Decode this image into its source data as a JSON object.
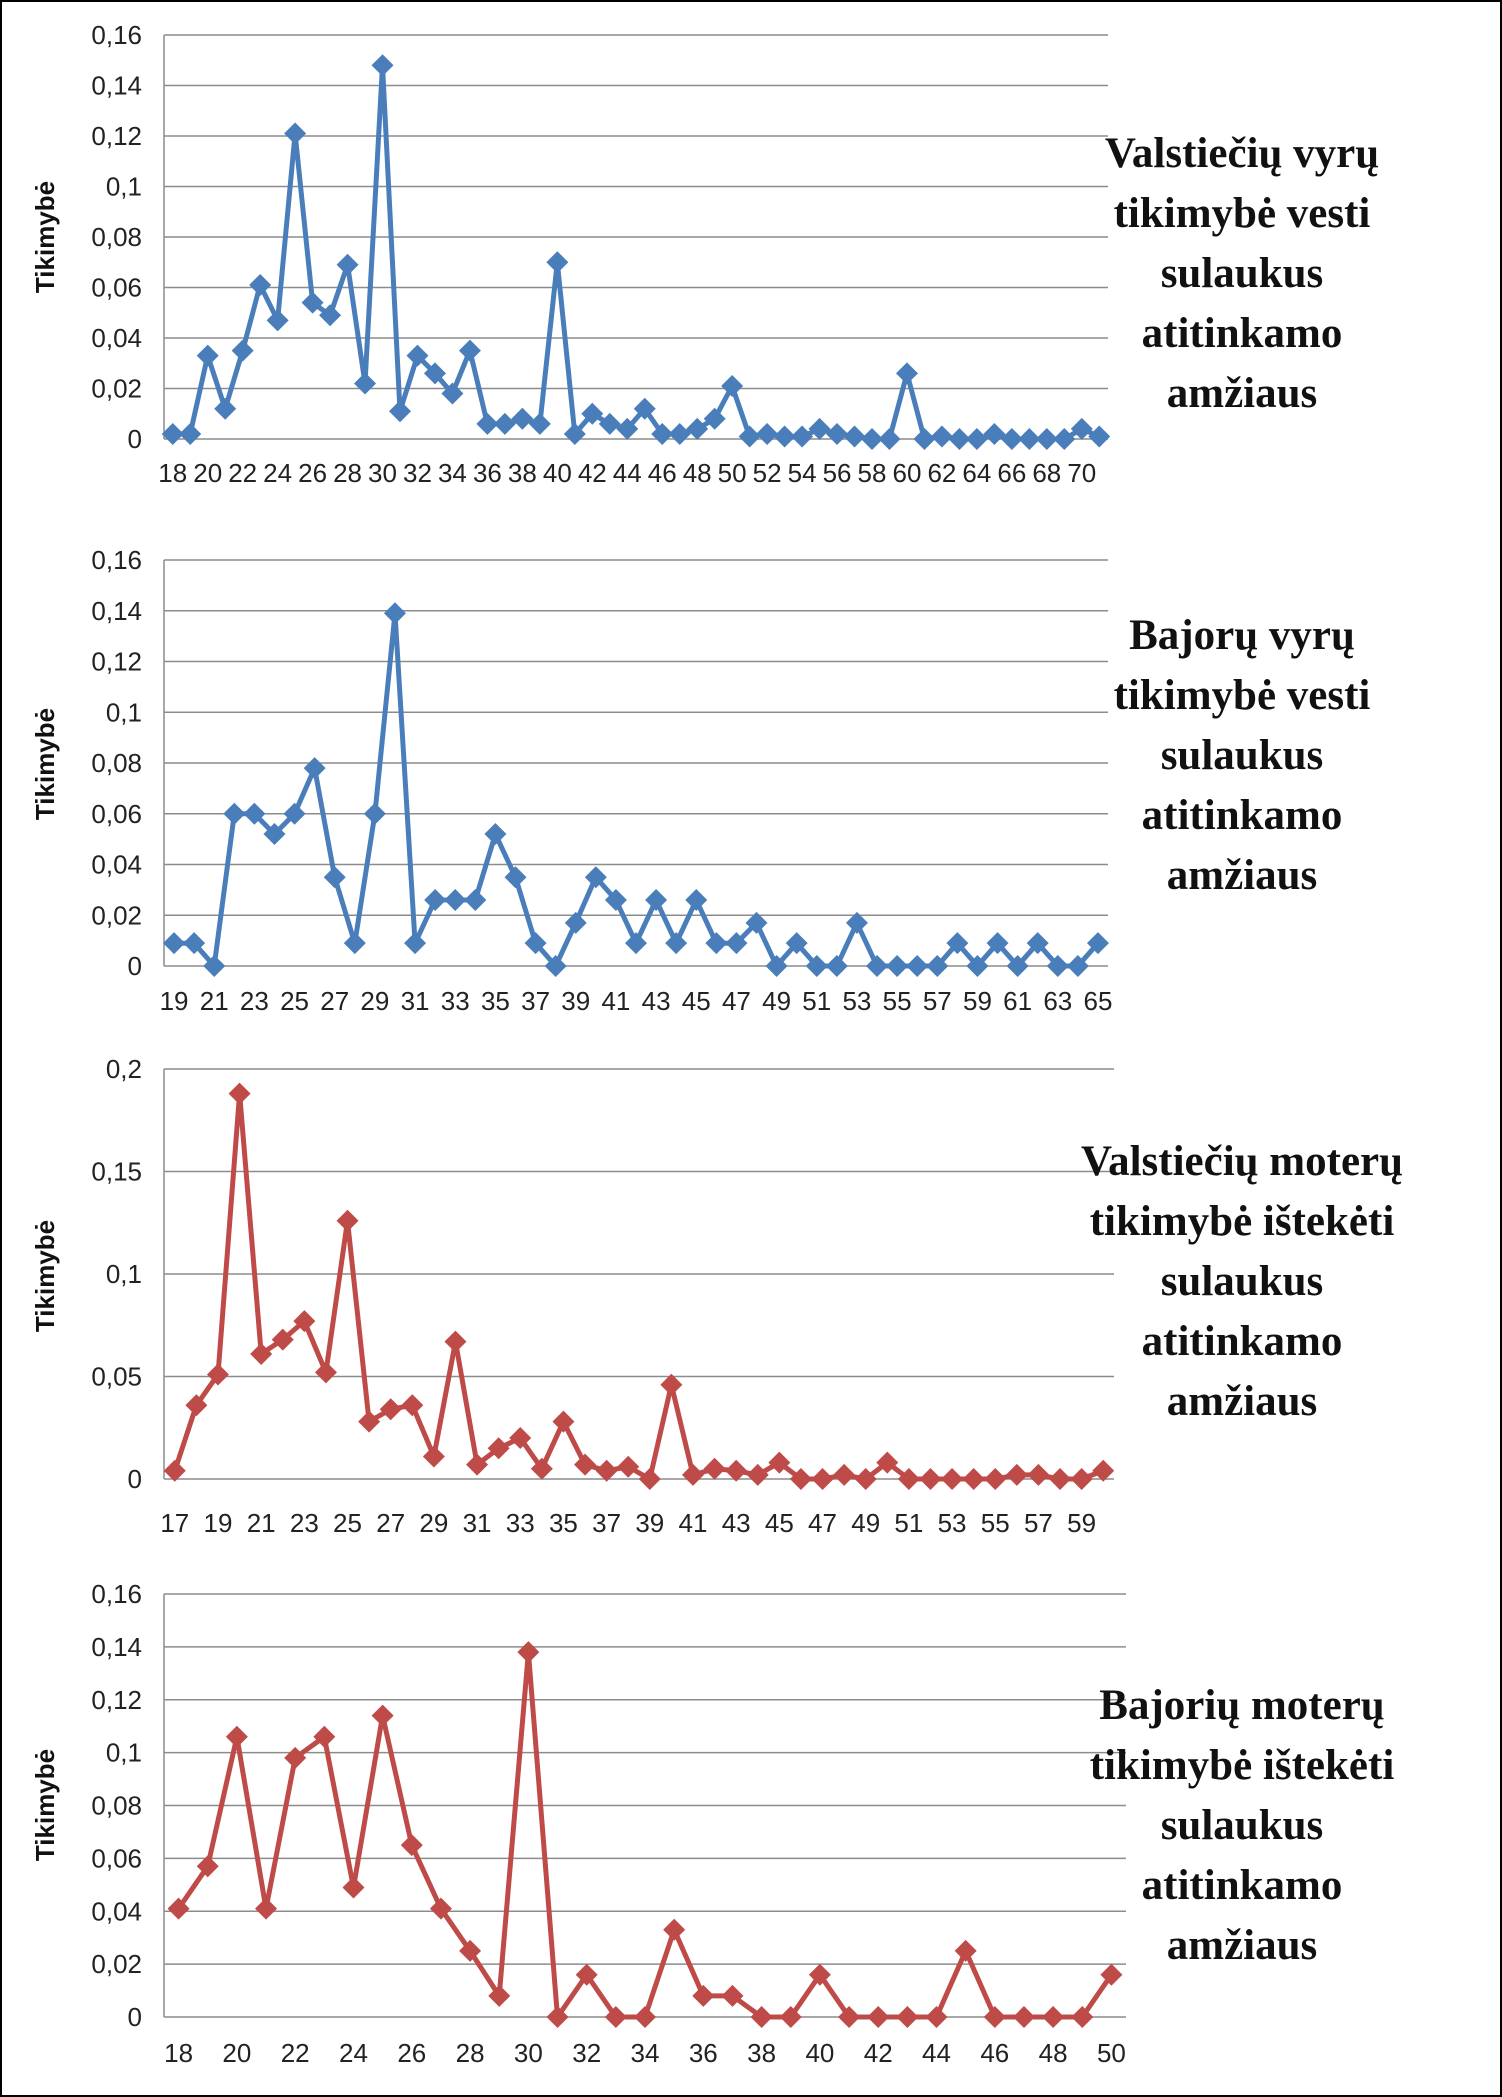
{
  "chart_data": [
    {
      "type": "line",
      "caption": [
        "Valstiečių vyrų",
        "tikimybė vesti",
        "sulaukus",
        "atitinkamo",
        "amžiaus"
      ],
      "ylabel": "Tikimybė",
      "ylim": [
        0,
        0.16
      ],
      "yticks": [
        "0",
        "0,02",
        "0,04",
        "0,06",
        "0,08",
        "0,1",
        "0,12",
        "0,14",
        "0,16"
      ],
      "x": [
        18,
        19,
        20,
        21,
        22,
        23,
        24,
        25,
        26,
        27,
        28,
        29,
        30,
        31,
        32,
        33,
        34,
        35,
        36,
        37,
        38,
        39,
        40,
        41,
        42,
        43,
        44,
        45,
        46,
        47,
        48,
        49,
        50,
        51,
        52,
        53,
        54,
        55,
        56,
        57,
        58,
        59,
        60,
        61,
        62,
        63,
        64,
        65,
        66,
        67,
        68,
        69,
        70,
        71
      ],
      "xtick_labels": [
        "18",
        "20",
        "22",
        "24",
        "26",
        "28",
        "30",
        "32",
        "34",
        "36",
        "38",
        "40",
        "42",
        "44",
        "46",
        "48",
        "50",
        "52",
        "54",
        "56",
        "58",
        "60",
        "62",
        "64",
        "66",
        "68",
        "70"
      ],
      "values": [
        0.002,
        0.002,
        0.033,
        0.012,
        0.035,
        0.061,
        0.047,
        0.121,
        0.054,
        0.049,
        0.069,
        0.022,
        0.148,
        0.011,
        0.033,
        0.026,
        0.018,
        0.035,
        0.006,
        0.006,
        0.008,
        0.006,
        0.07,
        0.002,
        0.01,
        0.006,
        0.004,
        0.012,
        0.002,
        0.002,
        0.004,
        0.008,
        0.021,
        0.001,
        0.002,
        0.001,
        0.001,
        0.004,
        0.002,
        0.001,
        0,
        0,
        0.026,
        0,
        0.001,
        0,
        0,
        0.002,
        0,
        0,
        0,
        0,
        0.004,
        0.001
      ],
      "color": "#4a7ebb",
      "grid": true
    },
    {
      "type": "line",
      "caption": [
        "Bajorų vyrų",
        "tikimybė vesti",
        "sulaukus",
        "atitinkamo",
        "amžiaus"
      ],
      "ylabel": "Tikimybė",
      "ylim": [
        0,
        0.16
      ],
      "yticks": [
        "0",
        "0,02",
        "0,04",
        "0,06",
        "0,08",
        "0,1",
        "0,12",
        "0,14",
        "0,16"
      ],
      "x": [
        19,
        20,
        21,
        22,
        23,
        24,
        25,
        26,
        27,
        28,
        29,
        30,
        31,
        32,
        33,
        34,
        35,
        36,
        37,
        38,
        39,
        40,
        41,
        42,
        43,
        44,
        45,
        46,
        47,
        48,
        49,
        50,
        51,
        52,
        53,
        54,
        55,
        56,
        57,
        58,
        59,
        60,
        61,
        62,
        63,
        64,
        65
      ],
      "xtick_labels": [
        "19",
        "21",
        "23",
        "25",
        "27",
        "29",
        "31",
        "33",
        "35",
        "37",
        "39",
        "41",
        "43",
        "45",
        "47",
        "49",
        "51",
        "53",
        "55",
        "57",
        "59",
        "61",
        "63",
        "65"
      ],
      "values": [
        0.009,
        0.009,
        0,
        0.06,
        0.06,
        0.052,
        0.06,
        0.078,
        0.035,
        0.009,
        0.06,
        0.139,
        0.009,
        0.026,
        0.026,
        0.026,
        0.052,
        0.035,
        0.009,
        0,
        0.017,
        0.035,
        0.026,
        0.009,
        0.026,
        0.009,
        0.026,
        0.009,
        0.009,
        0.017,
        0,
        0.009,
        0,
        0,
        0.017,
        0,
        0,
        0,
        0,
        0.009,
        0,
        0.009,
        0,
        0.009,
        0,
        0,
        0.009
      ],
      "color": "#4a7ebb",
      "grid": true
    },
    {
      "type": "line",
      "caption": [
        "Valstiečių moterų",
        "tikimybė ištekėti",
        "sulaukus",
        "atitinkamo",
        "amžiaus"
      ],
      "ylabel": "Tikimybė",
      "ylim": [
        0,
        0.2
      ],
      "yticks": [
        "0",
        "0,05",
        "0,1",
        "0,15",
        "0,2"
      ],
      "x": [
        17,
        18,
        19,
        20,
        21,
        22,
        23,
        24,
        25,
        26,
        27,
        28,
        29,
        30,
        31,
        32,
        33,
        34,
        35,
        36,
        37,
        38,
        39,
        40,
        41,
        42,
        43,
        44,
        45,
        46,
        47,
        48,
        49,
        50,
        51,
        52,
        53,
        54,
        55,
        56,
        57,
        58,
        59,
        60
      ],
      "xtick_labels": [
        "17",
        "19",
        "21",
        "23",
        "25",
        "27",
        "29",
        "31",
        "33",
        "35",
        "37",
        "39",
        "41",
        "43",
        "45",
        "47",
        "49",
        "51",
        "53",
        "55",
        "57",
        "59"
      ],
      "values": [
        0.004,
        0.036,
        0.051,
        0.188,
        0.061,
        0.068,
        0.077,
        0.052,
        0.126,
        0.028,
        0.034,
        0.036,
        0.011,
        0.067,
        0.007,
        0.015,
        0.02,
        0.005,
        0.028,
        0.007,
        0.004,
        0.006,
        0,
        0.046,
        0.002,
        0.005,
        0.004,
        0.002,
        0.008,
        0,
        0,
        0.002,
        0,
        0.008,
        0,
        0,
        0,
        0,
        0,
        0.002,
        0.002,
        0,
        0,
        0.004
      ],
      "color": "#be4b48",
      "grid": true
    },
    {
      "type": "line",
      "caption": [
        "Bajorių moterų",
        "tikimybė ištekėti",
        "sulaukus",
        "atitinkamo",
        "amžiaus"
      ],
      "ylabel": "Tikimybė",
      "ylim": [
        0,
        0.16
      ],
      "yticks": [
        "0",
        "0,02",
        "0,04",
        "0,06",
        "0,08",
        "0,1",
        "0,12",
        "0,14",
        "0,16"
      ],
      "x": [
        18,
        19,
        20,
        21,
        22,
        23,
        24,
        25,
        26,
        27,
        28,
        29,
        30,
        31,
        32,
        33,
        34,
        35,
        36,
        37,
        38,
        39,
        40,
        41,
        42,
        43,
        44,
        45,
        46,
        47,
        48,
        49,
        50
      ],
      "xtick_labels": [
        "18",
        "20",
        "22",
        "24",
        "26",
        "28",
        "30",
        "32",
        "34",
        "36",
        "38",
        "40",
        "42",
        "44",
        "46",
        "48",
        "50"
      ],
      "values": [
        0.041,
        0.057,
        0.106,
        0.041,
        0.098,
        0.106,
        0.049,
        0.114,
        0.065,
        0.041,
        0.025,
        0.008,
        0.138,
        0,
        0.016,
        0,
        0,
        0.033,
        0.008,
        0.008,
        0,
        0,
        0.016,
        0,
        0,
        0,
        0,
        0.025,
        0,
        0,
        0,
        0,
        0.016
      ],
      "color": "#be4b48",
      "grid": true
    }
  ]
}
